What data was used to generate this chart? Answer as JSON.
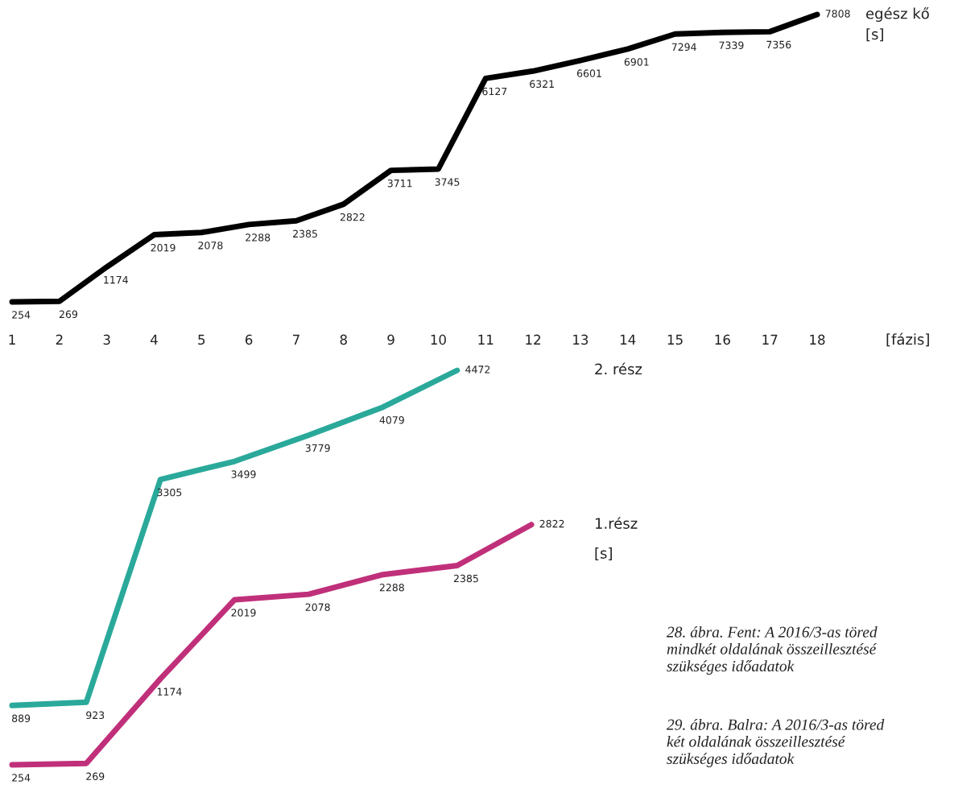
{
  "chart_data": [
    {
      "type": "line",
      "categories": [
        "1",
        "2",
        "3",
        "4",
        "5",
        "6",
        "7",
        "8",
        "9",
        "10",
        "11",
        "12",
        "13",
        "14",
        "15",
        "16",
        "17",
        "18"
      ],
      "xlabel": "[fázis]",
      "ylabel": "[s]",
      "tick_labels": "x",
      "data_labels": true,
      "grid": false,
      "legend": false,
      "marker": "none",
      "line_style": "solid",
      "series": [
        {
          "name": "egész kő",
          "color": "#000000",
          "values": [
            254,
            269,
            1174,
            2019,
            2078,
            2288,
            2385,
            2822,
            3711,
            3745,
            6127,
            6321,
            6601,
            6901,
            7294,
            7339,
            7356,
            7808
          ]
        }
      ]
    },
    {
      "type": "line",
      "categories": [
        null,
        null,
        null,
        null,
        null,
        null,
        null,
        null
      ],
      "ylabel": "[s]",
      "tick_labels": false,
      "data_labels": true,
      "grid": false,
      "legend": false,
      "marker": "none",
      "line_style": "solid",
      "series": [
        {
          "name": "2. rész",
          "color": "#2aa99b",
          "values": [
            889,
            923,
            3305,
            3499,
            3779,
            4079,
            4472,
            null
          ]
        },
        {
          "name": "1.rész",
          "color": "#c0307a",
          "values": [
            254,
            269,
            1174,
            2019,
            2078,
            2288,
            2385,
            2822
          ]
        }
      ],
      "annotations": [
        "28. ábra. Fent: A 2016/3-as töred\nmindkét oldalának összeillesztésé\nszükséges időadatok",
        "29. ábra. Balra: A 2016/3-as töred\nkét oldalának összeillesztésé\nszükséges időadatok"
      ]
    }
  ]
}
